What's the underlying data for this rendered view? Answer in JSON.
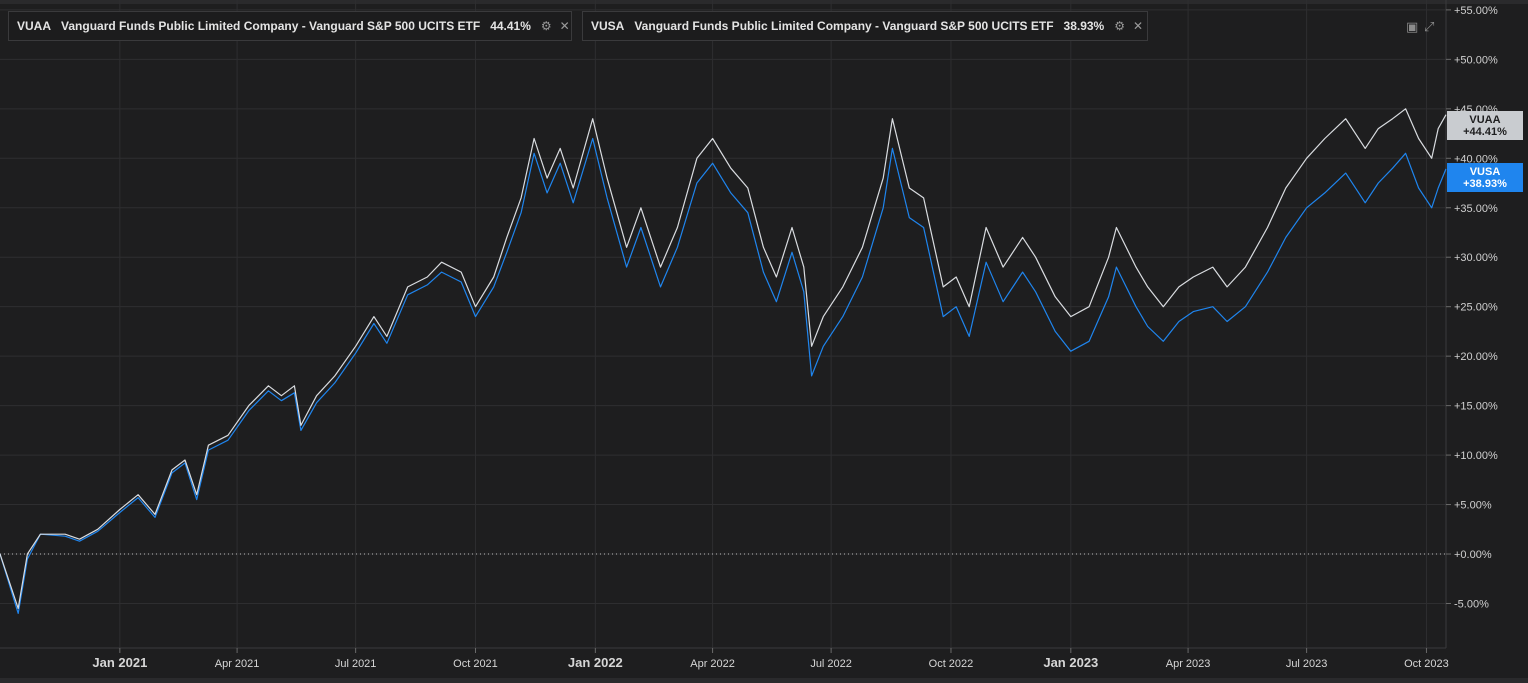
{
  "legend": [
    {
      "symbol": "VUAA",
      "name": "Vanguard Funds Public Limited Company - Vanguard S&P 500 UCITS ETF",
      "change": "44.41%",
      "color": "#d9dce0"
    },
    {
      "symbol": "VUSA",
      "name": "Vanguard Funds Public Limited Company - Vanguard S&P 500 UCITS ETF",
      "change": "38.93%",
      "color": "#1f85ee"
    }
  ],
  "price_tags": [
    {
      "symbol": "VUAA",
      "value": "+44.41%"
    },
    {
      "symbol": "VUSA",
      "value": "+38.93%"
    }
  ],
  "icons": {
    "legend_settings": "settings-icon",
    "legend_close": "close-icon",
    "expand": "expand-icon",
    "collapse": "collapse-icon"
  },
  "chart_data": {
    "type": "line",
    "y_ticks": [
      "+55.00%",
      "+50.00%",
      "+45.00%",
      "+40.00%",
      "+35.00%",
      "+30.00%",
      "+25.00%",
      "+20.00%",
      "+15.00%",
      "+10.00%",
      "+5.00%",
      "+0.00%",
      "-5.00%"
    ],
    "x_ticks": [
      {
        "label": "Jan 2021",
        "major": true
      },
      {
        "label": "Apr 2021",
        "major": false
      },
      {
        "label": "Jul 2021",
        "major": false
      },
      {
        "label": "Oct 2021",
        "major": false
      },
      {
        "label": "Jan 2022",
        "major": true
      },
      {
        "label": "Apr 2022",
        "major": false
      },
      {
        "label": "Jul 2022",
        "major": false
      },
      {
        "label": "Oct 2022",
        "major": false
      },
      {
        "label": "Jan 2023",
        "major": true
      },
      {
        "label": "Apr 2023",
        "major": false
      },
      {
        "label": "Jul 2023",
        "major": false
      },
      {
        "label": "Oct 2023",
        "major": false
      }
    ],
    "x_range": [
      "2020-10-01",
      "2023-10-16"
    ],
    "ylim": [
      -9.5,
      56
    ],
    "baseline": 0,
    "grid": true,
    "series": [
      {
        "name": "VUAA",
        "color": "#d9dce0",
        "points": [
          [
            "2020-10-01",
            0
          ],
          [
            "2020-10-15",
            -5.5
          ],
          [
            "2020-10-22",
            0
          ],
          [
            "2020-11-01",
            2
          ],
          [
            "2020-11-20",
            2
          ],
          [
            "2020-12-01",
            1.5
          ],
          [
            "2020-12-15",
            2.5
          ],
          [
            "2021-01-01",
            4.5
          ],
          [
            "2021-01-15",
            6
          ],
          [
            "2021-01-28",
            4
          ],
          [
            "2021-02-10",
            8.5
          ],
          [
            "2021-02-20",
            9.5
          ],
          [
            "2021-03-01",
            6
          ],
          [
            "2021-03-10",
            11
          ],
          [
            "2021-03-25",
            12
          ],
          [
            "2021-04-10",
            15
          ],
          [
            "2021-04-25",
            17
          ],
          [
            "2021-05-05",
            16
          ],
          [
            "2021-05-15",
            17
          ],
          [
            "2021-05-20",
            13
          ],
          [
            "2021-06-01",
            16
          ],
          [
            "2021-06-15",
            18
          ],
          [
            "2021-07-01",
            21
          ],
          [
            "2021-07-15",
            24
          ],
          [
            "2021-07-25",
            22
          ],
          [
            "2021-08-10",
            27
          ],
          [
            "2021-08-25",
            28
          ],
          [
            "2021-09-05",
            29.5
          ],
          [
            "2021-09-20",
            28.5
          ],
          [
            "2021-10-01",
            25
          ],
          [
            "2021-10-15",
            28
          ],
          [
            "2021-10-25",
            32
          ],
          [
            "2021-11-05",
            36
          ],
          [
            "2021-11-15",
            42
          ],
          [
            "2021-11-25",
            38
          ],
          [
            "2021-12-05",
            41
          ],
          [
            "2021-12-15",
            37
          ],
          [
            "2021-12-30",
            44
          ],
          [
            "2022-01-10",
            38
          ],
          [
            "2022-01-25",
            31
          ],
          [
            "2022-02-05",
            35
          ],
          [
            "2022-02-20",
            29
          ],
          [
            "2022-03-05",
            33
          ],
          [
            "2022-03-20",
            40
          ],
          [
            "2022-04-01",
            42
          ],
          [
            "2022-04-15",
            39
          ],
          [
            "2022-04-28",
            37
          ],
          [
            "2022-05-10",
            31
          ],
          [
            "2022-05-20",
            28
          ],
          [
            "2022-06-01",
            33
          ],
          [
            "2022-06-10",
            29
          ],
          [
            "2022-06-16",
            21
          ],
          [
            "2022-06-25",
            24
          ],
          [
            "2022-07-10",
            27
          ],
          [
            "2022-07-25",
            31
          ],
          [
            "2022-08-10",
            38
          ],
          [
            "2022-08-17",
            44
          ],
          [
            "2022-08-30",
            37
          ],
          [
            "2022-09-10",
            36
          ],
          [
            "2022-09-25",
            27
          ],
          [
            "2022-10-05",
            28
          ],
          [
            "2022-10-15",
            25
          ],
          [
            "2022-10-28",
            33
          ],
          [
            "2022-11-10",
            29
          ],
          [
            "2022-11-25",
            32
          ],
          [
            "2022-12-05",
            30
          ],
          [
            "2022-12-20",
            26
          ],
          [
            "2023-01-01",
            24
          ],
          [
            "2023-01-15",
            25
          ],
          [
            "2023-01-30",
            30
          ],
          [
            "2023-02-05",
            33
          ],
          [
            "2023-02-20",
            29
          ],
          [
            "2023-03-01",
            27
          ],
          [
            "2023-03-13",
            25
          ],
          [
            "2023-03-25",
            27
          ],
          [
            "2023-04-05",
            28
          ],
          [
            "2023-04-20",
            29
          ],
          [
            "2023-05-01",
            27
          ],
          [
            "2023-05-15",
            29
          ],
          [
            "2023-06-01",
            33
          ],
          [
            "2023-06-15",
            37
          ],
          [
            "2023-07-01",
            40
          ],
          [
            "2023-07-15",
            42
          ],
          [
            "2023-07-31",
            44
          ],
          [
            "2023-08-15",
            41
          ],
          [
            "2023-08-25",
            43
          ],
          [
            "2023-09-05",
            44
          ],
          [
            "2023-09-15",
            45
          ],
          [
            "2023-09-25",
            42
          ],
          [
            "2023-10-05",
            40
          ],
          [
            "2023-10-10",
            43
          ],
          [
            "2023-10-16",
            44.41
          ]
        ]
      },
      {
        "name": "VUSA",
        "color": "#1f85ee",
        "points": [
          [
            "2020-10-01",
            0
          ],
          [
            "2020-10-15",
            -6
          ],
          [
            "2020-10-22",
            -0.5
          ],
          [
            "2020-11-01",
            2
          ],
          [
            "2020-11-20",
            1.8
          ],
          [
            "2020-12-01",
            1.3
          ],
          [
            "2020-12-15",
            2.3
          ],
          [
            "2021-01-01",
            4.2
          ],
          [
            "2021-01-15",
            5.7
          ],
          [
            "2021-01-28",
            3.7
          ],
          [
            "2021-02-10",
            8.2
          ],
          [
            "2021-02-20",
            9.2
          ],
          [
            "2021-03-01",
            5.5
          ],
          [
            "2021-03-10",
            10.5
          ],
          [
            "2021-03-25",
            11.5
          ],
          [
            "2021-04-10",
            14.5
          ],
          [
            "2021-04-25",
            16.5
          ],
          [
            "2021-05-05",
            15.5
          ],
          [
            "2021-05-15",
            16.3
          ],
          [
            "2021-05-20",
            12.5
          ],
          [
            "2021-06-01",
            15.3
          ],
          [
            "2021-06-15",
            17.3
          ],
          [
            "2021-07-01",
            20.3
          ],
          [
            "2021-07-15",
            23.3
          ],
          [
            "2021-07-25",
            21.3
          ],
          [
            "2021-08-10",
            26.2
          ],
          [
            "2021-08-25",
            27.2
          ],
          [
            "2021-09-05",
            28.5
          ],
          [
            "2021-09-20",
            27.5
          ],
          [
            "2021-10-01",
            24
          ],
          [
            "2021-10-15",
            27
          ],
          [
            "2021-10-25",
            30.5
          ],
          [
            "2021-11-05",
            34.5
          ],
          [
            "2021-11-15",
            40.5
          ],
          [
            "2021-11-25",
            36.5
          ],
          [
            "2021-12-05",
            39.5
          ],
          [
            "2021-12-15",
            35.5
          ],
          [
            "2021-12-30",
            42
          ],
          [
            "2022-01-10",
            36
          ],
          [
            "2022-01-25",
            29
          ],
          [
            "2022-02-05",
            33
          ],
          [
            "2022-02-20",
            27
          ],
          [
            "2022-03-05",
            31
          ],
          [
            "2022-03-20",
            37.5
          ],
          [
            "2022-04-01",
            39.5
          ],
          [
            "2022-04-15",
            36.5
          ],
          [
            "2022-04-28",
            34.5
          ],
          [
            "2022-05-10",
            28.5
          ],
          [
            "2022-05-20",
            25.5
          ],
          [
            "2022-06-01",
            30.5
          ],
          [
            "2022-06-10",
            26.5
          ],
          [
            "2022-06-16",
            18
          ],
          [
            "2022-06-25",
            21
          ],
          [
            "2022-07-10",
            24
          ],
          [
            "2022-07-25",
            28
          ],
          [
            "2022-08-10",
            35
          ],
          [
            "2022-08-17",
            41
          ],
          [
            "2022-08-30",
            34
          ],
          [
            "2022-09-10",
            33
          ],
          [
            "2022-09-25",
            24
          ],
          [
            "2022-10-05",
            25
          ],
          [
            "2022-10-15",
            22
          ],
          [
            "2022-10-28",
            29.5
          ],
          [
            "2022-11-10",
            25.5
          ],
          [
            "2022-11-25",
            28.5
          ],
          [
            "2022-12-05",
            26.5
          ],
          [
            "2022-12-20",
            22.5
          ],
          [
            "2023-01-01",
            20.5
          ],
          [
            "2023-01-15",
            21.5
          ],
          [
            "2023-01-30",
            26
          ],
          [
            "2023-02-05",
            29
          ],
          [
            "2023-02-20",
            25
          ],
          [
            "2023-03-01",
            23
          ],
          [
            "2023-03-13",
            21.5
          ],
          [
            "2023-03-25",
            23.5
          ],
          [
            "2023-04-05",
            24.5
          ],
          [
            "2023-04-20",
            25
          ],
          [
            "2023-05-01",
            23.5
          ],
          [
            "2023-05-15",
            25
          ],
          [
            "2023-06-01",
            28.5
          ],
          [
            "2023-06-15",
            32
          ],
          [
            "2023-07-01",
            35
          ],
          [
            "2023-07-15",
            36.5
          ],
          [
            "2023-07-31",
            38.5
          ],
          [
            "2023-08-15",
            35.5
          ],
          [
            "2023-08-25",
            37.5
          ],
          [
            "2023-09-05",
            39
          ],
          [
            "2023-09-15",
            40.5
          ],
          [
            "2023-09-25",
            37
          ],
          [
            "2023-10-05",
            35
          ],
          [
            "2023-10-10",
            37
          ],
          [
            "2023-10-16",
            38.93
          ]
        ]
      }
    ]
  }
}
